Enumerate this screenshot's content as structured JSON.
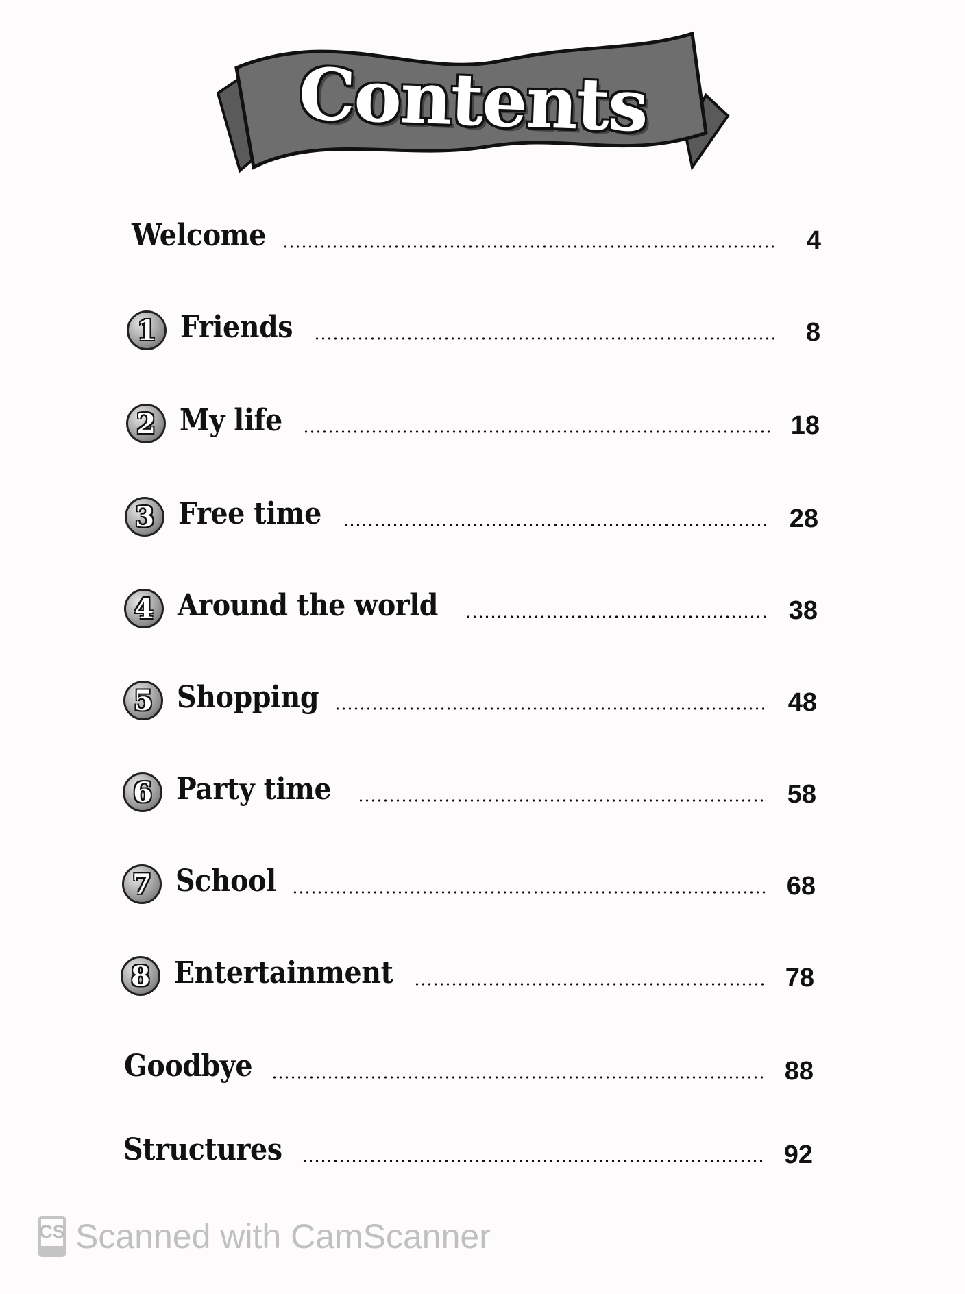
{
  "header": {
    "title": "Contents"
  },
  "entries": [
    {
      "number": "",
      "label": "Welcome",
      "page": "4"
    },
    {
      "number": "1",
      "label": "Friends",
      "page": "8"
    },
    {
      "number": "2",
      "label": "My life",
      "page": "18"
    },
    {
      "number": "3",
      "label": "Free time",
      "page": "28"
    },
    {
      "number": "4",
      "label": "Around the world",
      "page": "38"
    },
    {
      "number": "5",
      "label": "Shopping",
      "page": "48"
    },
    {
      "number": "6",
      "label": "Party time",
      "page": "58"
    },
    {
      "number": "7",
      "label": "School",
      "page": "68"
    },
    {
      "number": "8",
      "label": "Entertainment",
      "page": "78"
    },
    {
      "number": "",
      "label": "Goodbye",
      "page": "88"
    },
    {
      "number": "",
      "label": "Structures",
      "page": "92"
    }
  ],
  "watermark": {
    "icon": "CS",
    "text": "Scanned with CamScanner"
  },
  "colors": {
    "banner": "#6e6e6e",
    "text": "#111111",
    "watermark": "#c0c0c0"
  }
}
